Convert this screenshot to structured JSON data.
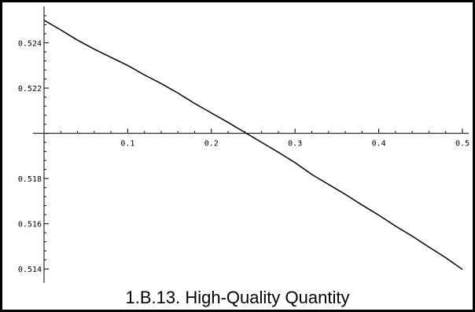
{
  "caption": "1.B.13.  High-Quality Quantity",
  "chart_data": {
    "type": "line",
    "title": "",
    "xlabel": "",
    "ylabel": "",
    "xlim": [
      0,
      0.5
    ],
    "ylim": [
      0.5138,
      0.5252
    ],
    "axis_cross_y": 0.52,
    "grid": false,
    "legend": "none",
    "line_color": "#000000",
    "x_ticks": [
      {
        "value": 0.1,
        "label": "0.1"
      },
      {
        "value": 0.2,
        "label": "0.2"
      },
      {
        "value": 0.3,
        "label": "0.3"
      },
      {
        "value": 0.4,
        "label": "0.4"
      },
      {
        "value": 0.5,
        "label": "0.5"
      }
    ],
    "y_ticks": [
      {
        "value": 0.514,
        "label": "0.514"
      },
      {
        "value": 0.516,
        "label": "0.516"
      },
      {
        "value": 0.518,
        "label": "0.518"
      },
      {
        "value": 0.522,
        "label": "0.522"
      },
      {
        "value": 0.524,
        "label": "0.524"
      }
    ],
    "series": [
      {
        "x": [
          0.0,
          0.02,
          0.04,
          0.06,
          0.08,
          0.1,
          0.12,
          0.14,
          0.16,
          0.18,
          0.2,
          0.22,
          0.24,
          0.26,
          0.28,
          0.3,
          0.32,
          0.34,
          0.36,
          0.38,
          0.4,
          0.42,
          0.44,
          0.46,
          0.48,
          0.5
        ],
        "y": [
          0.525,
          0.52457,
          0.52412,
          0.52372,
          0.52336,
          0.523,
          0.52258,
          0.5222,
          0.52178,
          0.52132,
          0.5209,
          0.52048,
          0.52004,
          0.5196,
          0.51916,
          0.5187,
          0.51818,
          0.51774,
          0.5173,
          0.51683,
          0.51638,
          0.5159,
          0.51545,
          0.51497,
          0.5145,
          0.51398
        ]
      }
    ]
  }
}
